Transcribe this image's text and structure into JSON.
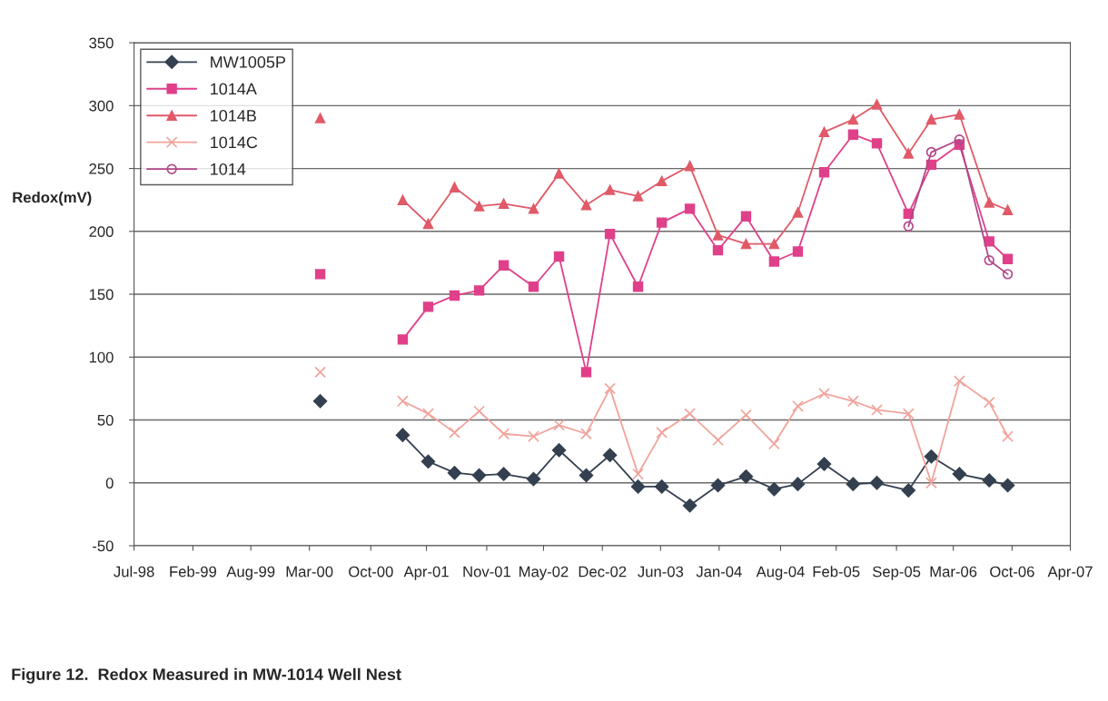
{
  "chart_data": {
    "type": "line",
    "ylabel": "Redox(mV)",
    "annotations": [
      "Figure 12.  Redox Measured in MW-1014 Well Nest"
    ],
    "x": [
      "2000-04-11",
      "2000-09-01",
      "2001-01-18",
      "2001-04-15",
      "2001-07-14",
      "2001-10-06",
      "2001-12-29",
      "2002-04-10",
      "2002-07-06",
      "2002-10-07",
      "2002-12-27",
      "2003-04-02",
      "2003-06-22",
      "2003-09-26",
      "2003-12-31",
      "2004-04-05",
      "2004-07-10",
      "2004-09-29",
      "2004-12-28",
      "2005-04-06",
      "2005-06-26",
      "2005-10-12",
      "2005-12-29",
      "2006-04-04",
      "2006-07-15",
      "2006-09-16"
    ],
    "series": [
      {
        "name": "MW1005P",
        "color": "#34404f",
        "marker": "diamond",
        "values": [
          65,
          null,
          38,
          17,
          8,
          6,
          7,
          3,
          26,
          6,
          22,
          -3,
          -3,
          -18,
          -2,
          5,
          -5,
          -1,
          15,
          -1,
          0,
          -6,
          21,
          7,
          2,
          -2
        ]
      },
      {
        "name": "1014A",
        "color": "#e0408a",
        "marker": "square",
        "values": [
          166,
          null,
          114,
          140,
          149,
          153,
          173,
          156,
          180,
          88,
          198,
          156,
          207,
          218,
          185,
          212,
          176,
          184,
          247,
          277,
          270,
          214,
          253,
          269,
          192,
          178
        ]
      },
      {
        "name": "1014B",
        "color": "#e05a68",
        "marker": "triangle",
        "values": [
          290,
          null,
          225,
          206,
          235,
          220,
          222,
          218,
          246,
          221,
          233,
          228,
          240,
          252,
          197,
          190,
          190,
          215,
          279,
          289,
          301,
          262,
          289,
          293,
          223,
          217
        ]
      },
      {
        "name": "1014C",
        "color": "#f0a49c",
        "marker": "cross",
        "values": [
          88,
          null,
          65,
          55,
          40,
          57,
          39,
          37,
          46,
          39,
          75,
          7,
          40,
          55,
          34,
          54,
          31,
          61,
          71,
          65,
          58,
          55,
          0,
          81,
          64,
          37
        ]
      },
      {
        "name": "1014",
        "color": "#b04888",
        "marker": "circle",
        "values": [
          null,
          null,
          null,
          null,
          null,
          null,
          null,
          null,
          null,
          null,
          null,
          null,
          null,
          null,
          null,
          null,
          null,
          null,
          null,
          null,
          null,
          204,
          263,
          273,
          177,
          166
        ]
      }
    ],
    "xlim": [
      "1998-07-15",
      "2007-04-18"
    ],
    "xticks": [
      {
        "value": "1998-07-15",
        "label": "Jul-98"
      },
      {
        "value": "1999-02-01",
        "label": "Feb-99"
      },
      {
        "value": "1999-08-18",
        "label": "Aug-99"
      },
      {
        "value": "2000-03-05",
        "label": "Mar-00"
      },
      {
        "value": "2000-10-01",
        "label": "Oct-00"
      },
      {
        "value": "2001-04-09",
        "label": "Apr-01"
      },
      {
        "value": "2001-11-01",
        "label": "Nov-01"
      },
      {
        "value": "2002-05-14",
        "label": "May-02"
      },
      {
        "value": "2002-12-01",
        "label": "Dec-02"
      },
      {
        "value": "2003-06-18",
        "label": "Jun-03"
      },
      {
        "value": "2004-01-04",
        "label": "Jan-04"
      },
      {
        "value": "2004-08-01",
        "label": "Aug-04"
      },
      {
        "value": "2005-02-07",
        "label": "Feb-05"
      },
      {
        "value": "2005-09-01",
        "label": "Sep-05"
      },
      {
        "value": "2006-03-14",
        "label": "Mar-06"
      },
      {
        "value": "2006-10-01",
        "label": "Oct-06"
      },
      {
        "value": "2007-04-18",
        "label": "Apr-07"
      }
    ],
    "ylim": [
      -50,
      350
    ],
    "yticks": [
      -50,
      0,
      50,
      100,
      150,
      200,
      250,
      300,
      350
    ],
    "grid": "y",
    "legend": "top left",
    "line_style": "solid"
  }
}
